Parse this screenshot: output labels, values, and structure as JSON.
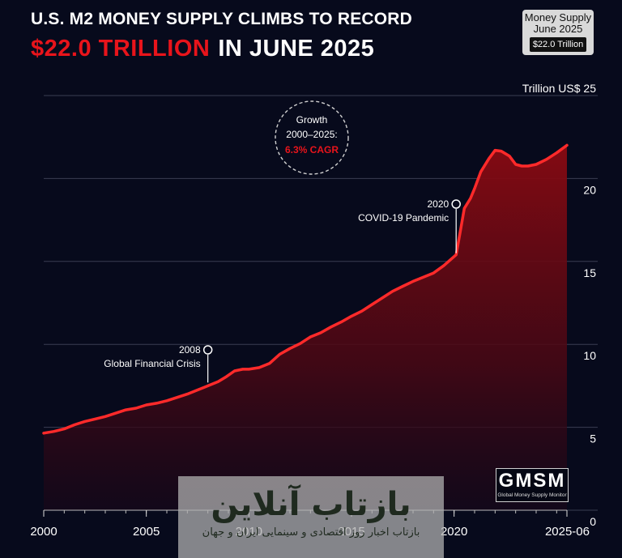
{
  "header": {
    "title_line1": "U.S. M2 MONEY SUPPLY CLIMBS TO RECORD",
    "title_highlight": "$22.0 TRILLION",
    "title_rest": "IN JUNE 2025"
  },
  "badge": {
    "line1": "Money Supply",
    "line2": "June 2025",
    "value": "$22.0 Trillion"
  },
  "growth_note": {
    "line1": "Growth",
    "line2": "2000–2025:",
    "cagr": "6.3% CAGR"
  },
  "logo": {
    "abbr": "GMSM",
    "full": "Global Money Supply Monitor"
  },
  "watermark": {
    "line1": "بازتاب آنلاین",
    "line2": "بازتاب اخبار روز اقتصادی و سینمایی ایران و جهان"
  },
  "colors": {
    "background": "#070a1c",
    "line": "#ff2a2a",
    "accent": "#e8141b",
    "grid": "#3a3d52"
  },
  "chart_data": {
    "type": "area",
    "title": "U.S. M2 MONEY SUPPLY CLIMBS TO RECORD $22.0 TRILLION IN JUNE 2025",
    "ylabel": "Trillion US$",
    "ylim": [
      0,
      25
    ],
    "xlim": [
      2000,
      2025.5
    ],
    "yticks": [
      0,
      5,
      10,
      15,
      20,
      25
    ],
    "y_unit_label": "Trillion US$ 25",
    "xticks": [
      {
        "value": 2000,
        "label": "2000"
      },
      {
        "value": 2005,
        "label": "2005"
      },
      {
        "value": 2010,
        "label": "2010"
      },
      {
        "value": 2015,
        "label": "2015"
      },
      {
        "value": 2020,
        "label": "2020"
      },
      {
        "value": 2025.5,
        "label": "2025-06"
      }
    ],
    "grid": true,
    "series": [
      {
        "points": [
          [
            2000,
            4.65
          ],
          [
            2000.5,
            4.75
          ],
          [
            2001,
            4.9
          ],
          [
            2001.5,
            5.15
          ],
          [
            2002,
            5.35
          ],
          [
            2002.5,
            5.5
          ],
          [
            2003,
            5.65
          ],
          [
            2003.5,
            5.85
          ],
          [
            2004,
            6.05
          ],
          [
            2004.5,
            6.15
          ],
          [
            2005,
            6.35
          ],
          [
            2005.5,
            6.45
          ],
          [
            2006,
            6.6
          ],
          [
            2006.5,
            6.8
          ],
          [
            2007,
            7.0
          ],
          [
            2007.5,
            7.25
          ],
          [
            2008,
            7.5
          ],
          [
            2008.5,
            7.75
          ],
          [
            2008.9,
            8.05
          ],
          [
            2009.3,
            8.4
          ],
          [
            2009.7,
            8.5
          ],
          [
            2010,
            8.5
          ],
          [
            2010.5,
            8.6
          ],
          [
            2011,
            8.85
          ],
          [
            2011.5,
            9.4
          ],
          [
            2012,
            9.75
          ],
          [
            2012.5,
            10.05
          ],
          [
            2013,
            10.45
          ],
          [
            2013.5,
            10.7
          ],
          [
            2014,
            11.05
          ],
          [
            2014.5,
            11.35
          ],
          [
            2015,
            11.7
          ],
          [
            2015.5,
            12.0
          ],
          [
            2016,
            12.4
          ],
          [
            2016.5,
            12.8
          ],
          [
            2017,
            13.2
          ],
          [
            2017.5,
            13.5
          ],
          [
            2018,
            13.8
          ],
          [
            2018.5,
            14.05
          ],
          [
            2019,
            14.3
          ],
          [
            2019.5,
            14.75
          ],
          [
            2020.1,
            15.4
          ],
          [
            2020.3,
            16.8
          ],
          [
            2020.5,
            18.2
          ],
          [
            2020.8,
            18.8
          ],
          [
            2021,
            19.4
          ],
          [
            2021.3,
            20.4
          ],
          [
            2021.7,
            21.2
          ],
          [
            2022,
            21.7
          ],
          [
            2022.3,
            21.65
          ],
          [
            2022.7,
            21.35
          ],
          [
            2023,
            20.85
          ],
          [
            2023.3,
            20.75
          ],
          [
            2023.6,
            20.75
          ],
          [
            2024,
            20.85
          ],
          [
            2024.5,
            21.15
          ],
          [
            2025,
            21.55
          ],
          [
            2025.5,
            22.0
          ]
        ]
      }
    ],
    "annotations": [
      {
        "x": 2008,
        "y": 7.6,
        "year": "2008",
        "label": "Global Financial Crisis"
      },
      {
        "x": 2020.1,
        "y": 15.4,
        "year": "2020",
        "label": "COVID-19 Pandemic"
      }
    ]
  }
}
